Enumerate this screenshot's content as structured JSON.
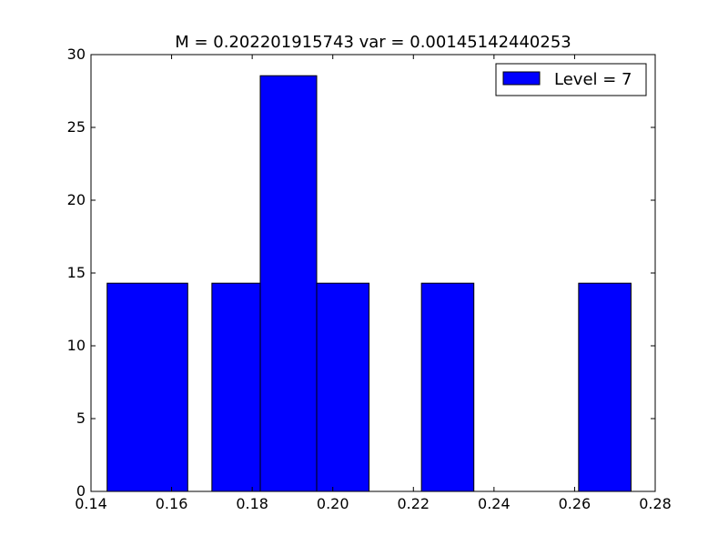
{
  "chart_data": {
    "type": "bar",
    "title": "M = 0.202201915743 var = 0.00145142440253",
    "xlabel": "",
    "ylabel": "",
    "xlim": [
      0.14,
      0.28
    ],
    "ylim": [
      0,
      30
    ],
    "x_ticks": [
      "0.14",
      "0.16",
      "0.18",
      "0.20",
      "0.22",
      "0.24",
      "0.26",
      "0.28"
    ],
    "x_tick_values": [
      0.14,
      0.16,
      0.18,
      0.2,
      0.22,
      0.24,
      0.26,
      0.28
    ],
    "y_ticks": [
      "0",
      "5",
      "10",
      "15",
      "20",
      "25",
      "30"
    ],
    "y_tick_values": [
      0,
      5,
      10,
      15,
      20,
      25,
      30
    ],
    "series": [
      {
        "name": "Level = 7",
        "color": "#0000ff",
        "bins": [
          {
            "x0": 0.144,
            "x1": 0.164,
            "value": 14.3
          },
          {
            "x0": 0.164,
            "x1": 0.17,
            "value": 0
          },
          {
            "x0": 0.17,
            "x1": 0.182,
            "value": 14.3
          },
          {
            "x0": 0.182,
            "x1": 0.196,
            "value": 28.55
          },
          {
            "x0": 0.196,
            "x1": 0.209,
            "value": 14.3
          },
          {
            "x0": 0.209,
            "x1": 0.222,
            "value": 0
          },
          {
            "x0": 0.222,
            "x1": 0.235,
            "value": 14.3
          },
          {
            "x0": 0.235,
            "x1": 0.261,
            "value": 0
          },
          {
            "x0": 0.261,
            "x1": 0.274,
            "value": 14.3
          }
        ]
      }
    ],
    "legend": {
      "position": "top-right",
      "entries": [
        "Level = 7"
      ]
    },
    "grid": false
  }
}
